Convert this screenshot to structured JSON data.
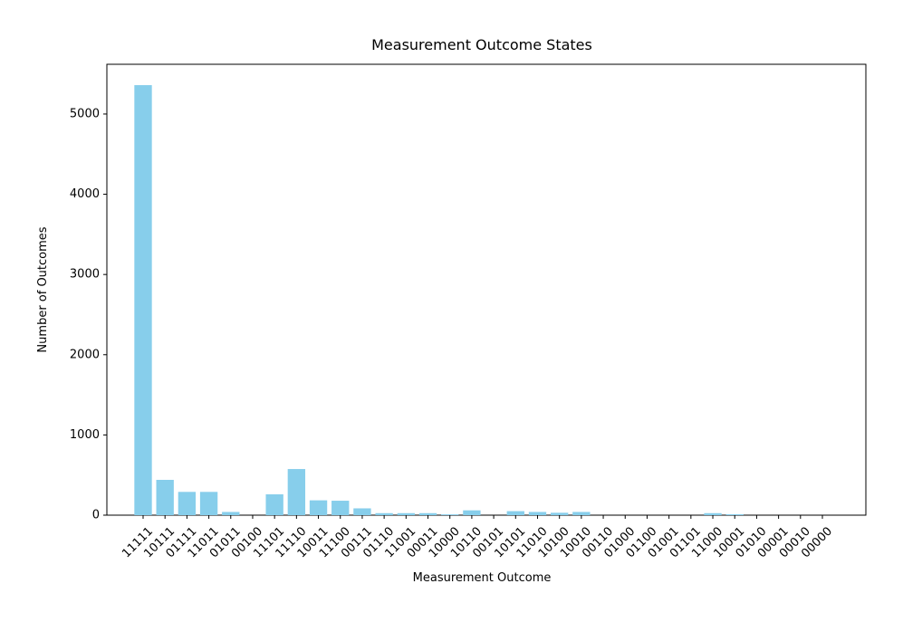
{
  "chart_data": {
    "type": "bar",
    "title": "Measurement Outcome States",
    "xlabel": "Measurement Outcome",
    "ylabel": "Number of Outcomes",
    "ylim": [
      0,
      5620
    ],
    "yticks": [
      0,
      1000,
      2000,
      3000,
      4000,
      5000
    ],
    "grid": false,
    "bar_color": "#87ceeb",
    "categories": [
      "11111",
      "10111",
      "01111",
      "11011",
      "01011",
      "00100",
      "11101",
      "11110",
      "10011",
      "11100",
      "00111",
      "01110",
      "11001",
      "00011",
      "10000",
      "10110",
      "00101",
      "10101",
      "11010",
      "10100",
      "10010",
      "00110",
      "01000",
      "01100",
      "01001",
      "01101",
      "11000",
      "10001",
      "01010",
      "00001",
      "00010",
      "00000"
    ],
    "values": [
      5360,
      440,
      290,
      290,
      40,
      0,
      260,
      575,
      185,
      180,
      85,
      25,
      25,
      25,
      10,
      60,
      0,
      50,
      40,
      30,
      40,
      0,
      0,
      0,
      0,
      0,
      25,
      12,
      0,
      0,
      0,
      0
    ]
  }
}
